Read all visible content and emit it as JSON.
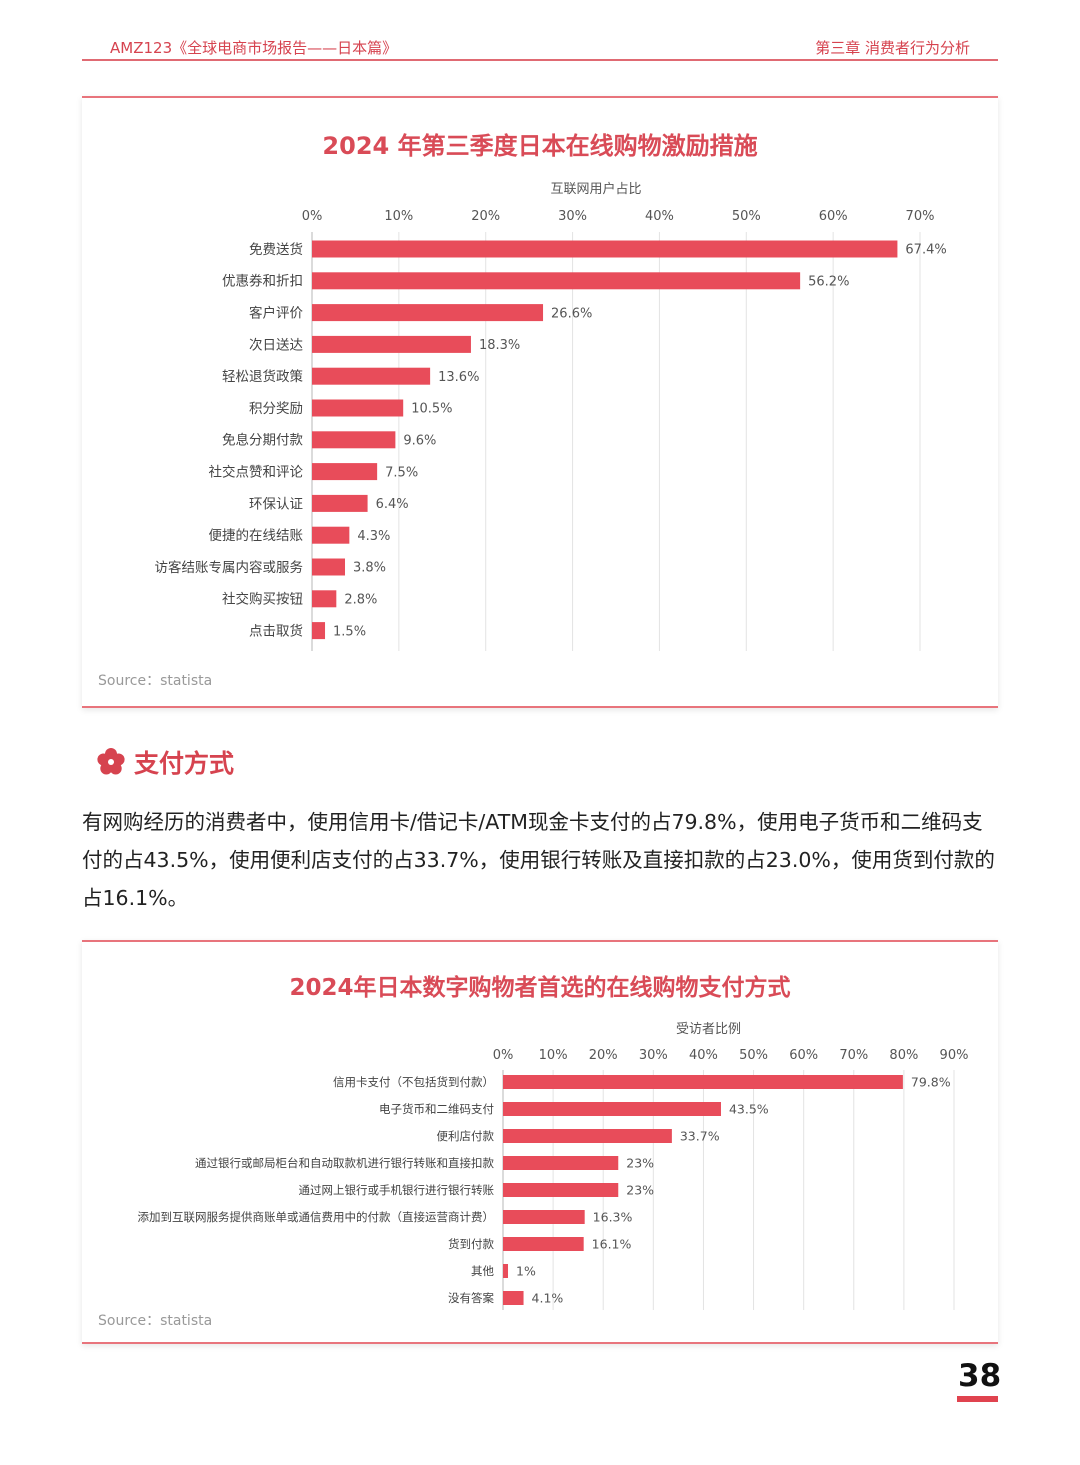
{
  "header": {
    "left": "AMZ123《全球电商市场报告——日本篇》",
    "right": "第三章  消费者行为分析"
  },
  "section": {
    "title": "支付方式",
    "icon": "sakura-flower-icon",
    "body": "有网购经历的消费者中，使用信用卡/借记卡/ATM现金卡支付的占79.8%，使用电子货币和二维码支付的占43.5%，使用便利店支付的占33.7%，使用银行转账及直接扣款的占23.0%，使用货到付款的占16.1%。"
  },
  "page_number": "38",
  "colors": {
    "bar": "#e84c5a",
    "accent": "#d6434f",
    "grid": "#e3e3e3"
  },
  "chart_data": [
    {
      "type": "bar",
      "orientation": "horizontal",
      "title": "2024 年第三季度日本在线购物激励措施",
      "xlabel": "互联网用户占比",
      "xlim": [
        0,
        70
      ],
      "xticks": [
        "0%",
        "10%",
        "20%",
        "30%",
        "40%",
        "50%",
        "60%",
        "70%"
      ],
      "categories": [
        "免费送货",
        "优惠券和折扣",
        "客户评价",
        "次日送达",
        "轻松退货政策",
        "积分奖励",
        "免息分期付款",
        "社交点赞和评论",
        "环保认证",
        "便捷的在线结账",
        "访客结账专属内容或服务",
        "社交购买按钮",
        "点击取货"
      ],
      "values": [
        67.4,
        56.2,
        26.6,
        18.3,
        13.6,
        10.5,
        9.6,
        7.5,
        6.4,
        4.3,
        3.8,
        2.8,
        1.5
      ],
      "labels": [
        "67.4%",
        "56.2%",
        "26.6%",
        "18.3%",
        "13.6%",
        "10.5%",
        "9.6%",
        "7.5%",
        "6.4%",
        "4.3%",
        "3.8%",
        "2.8%",
        "1.5%"
      ],
      "source": "Source：statista"
    },
    {
      "type": "bar",
      "orientation": "horizontal",
      "title": "2024年日本数字购物者首选的在线购物支付方式",
      "xlabel": "受访者比例",
      "xlim": [
        0,
        90
      ],
      "xticks": [
        "0%",
        "10%",
        "20%",
        "30%",
        "40%",
        "50%",
        "60%",
        "70%",
        "80%",
        "90%"
      ],
      "categories": [
        "信用卡支付（不包括货到付款）",
        "电子货币和二维码支付",
        "便利店付款",
        "通过银行或邮局柜台和自动取款机进行银行转账和直接扣款",
        "通过网上银行或手机银行进行银行转账",
        "添加到互联网服务提供商账单或通信费用中的付款（直接运营商计费）",
        "货到付款",
        "其他",
        "没有答案"
      ],
      "values": [
        79.8,
        43.5,
        33.7,
        23,
        23,
        16.3,
        16.1,
        1,
        4.1
      ],
      "labels": [
        "79.8%",
        "43.5%",
        "33.7%",
        "23%",
        "23%",
        "16.3%",
        "16.1%",
        "1%",
        "4.1%"
      ],
      "source": "Source：statista"
    }
  ]
}
